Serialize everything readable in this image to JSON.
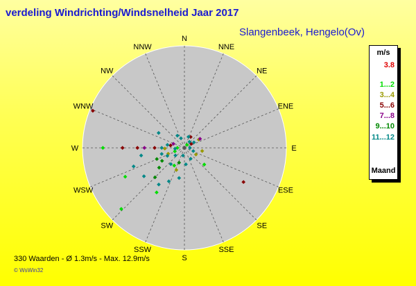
{
  "title": "verdeling Windrichting/Windsnelheid  Jaar 2017",
  "station": "Slangenbeek, Hengelo(Ov)",
  "stats": "330 Waarden   -  Ø 1.3m/s  -  Max. 12.9m/s",
  "credit": "© WsWin32",
  "legend": {
    "header": "m/s",
    "items": [
      {
        "label": "3.8",
        "color": "#e00000"
      },
      {
        "label": "1...2",
        "color": "#00dd00"
      },
      {
        "label": "3...4",
        "color": "#999900"
      },
      {
        "label": "5...6",
        "color": "#880000"
      },
      {
        "label": "7...8",
        "color": "#880088"
      },
      {
        "label": "9...10",
        "color": "#008800"
      },
      {
        "label": "11...12",
        "color": "#008888"
      }
    ],
    "footer": "Maand"
  },
  "chart_data": {
    "type": "scatter",
    "coordinate_system": "polar",
    "direction_labels": [
      "N",
      "NNE",
      "NE",
      "ENE",
      "E",
      "ESE",
      "SE",
      "SSE",
      "S",
      "SSW",
      "SW",
      "WSW",
      "W",
      "WNW",
      "NW",
      "NNW"
    ],
    "r_max_mps": 13,
    "series": [
      {
        "name": "1...2",
        "color": "#00dd00",
        "points": [
          {
            "dir": 270,
            "speed": 10.4
          },
          {
            "dir": 244,
            "speed": 8.4
          },
          {
            "dir": 226,
            "speed": 11.2
          },
          {
            "dir": 212,
            "speed": 6.7
          },
          {
            "dir": 270,
            "speed": 0.9
          },
          {
            "dir": 250,
            "speed": 1.3
          },
          {
            "dir": 40,
            "speed": 0.5
          },
          {
            "dir": 130,
            "speed": 3.3
          },
          {
            "dir": 210,
            "speed": 2.6
          }
        ]
      },
      {
        "name": "3...4",
        "color": "#999900",
        "points": [
          {
            "dir": 268,
            "speed": 2.5
          },
          {
            "dir": 100,
            "speed": 2.3
          },
          {
            "dir": 250,
            "speed": 2.2
          },
          {
            "dir": 120,
            "speed": 1.7
          },
          {
            "dir": 200,
            "speed": 3.0
          },
          {
            "dir": 60,
            "speed": 2.1
          }
        ]
      },
      {
        "name": "5...6",
        "color": "#880000",
        "points": [
          {
            "dir": 292,
            "speed": 12.6
          },
          {
            "dir": 270,
            "speed": 7.9
          },
          {
            "dir": 270,
            "speed": 6.0
          },
          {
            "dir": 120,
            "speed": 8.7
          },
          {
            "dir": 270,
            "speed": 3.8
          },
          {
            "dir": 280,
            "speed": 1.8
          },
          {
            "dir": 30,
            "speed": 1.6
          },
          {
            "dir": 60,
            "speed": 1.0
          }
        ]
      },
      {
        "name": "7...8",
        "color": "#880088",
        "points": [
          {
            "dir": 270,
            "speed": 5.1
          },
          {
            "dir": 60,
            "speed": 2.3
          },
          {
            "dir": 290,
            "speed": 1.5
          }
        ]
      },
      {
        "name": "9...10",
        "color": "#008800",
        "points": [
          {
            "dir": 248,
            "speed": 3.8
          },
          {
            "dir": 232,
            "speed": 4.1
          },
          {
            "dir": 240,
            "speed": 3.3
          },
          {
            "dir": 225,
            "speed": 5.3
          },
          {
            "dir": 200,
            "speed": 2.0
          }
        ]
      },
      {
        "name": "11...12",
        "color": "#008888",
        "points": [
          {
            "dir": 300,
            "speed": 3.8
          },
          {
            "dir": 330,
            "speed": 1.8
          },
          {
            "dir": 250,
            "speed": 6.9
          },
          {
            "dir": 260,
            "speed": 5.6
          },
          {
            "dir": 235,
            "speed": 6.3
          },
          {
            "dir": 215,
            "speed": 5.7
          },
          {
            "dir": 205,
            "speed": 4.7
          },
          {
            "dir": 190,
            "speed": 3.9
          },
          {
            "dir": 175,
            "speed": 2.1
          },
          {
            "dir": 150,
            "speed": 1.6
          },
          {
            "dir": 110,
            "speed": 1.2
          },
          {
            "dir": 60,
            "speed": 1.4
          },
          {
            "dir": 40,
            "speed": 1.0
          },
          {
            "dir": 20,
            "speed": 1.5
          },
          {
            "dir": 340,
            "speed": 1.3
          },
          {
            "dir": 270,
            "speed": 2.9
          },
          {
            "dir": 255,
            "speed": 3.0
          },
          {
            "dir": 245,
            "speed": 2.4
          },
          {
            "dir": 220,
            "speed": 2.7
          },
          {
            "dir": 190,
            "speed": 1.0
          },
          {
            "dir": 90,
            "speed": 0.7
          },
          {
            "dir": 265,
            "speed": 1.2
          },
          {
            "dir": 280,
            "speed": 2.2
          },
          {
            "dir": 230,
            "speed": 1.5
          }
        ]
      }
    ]
  }
}
